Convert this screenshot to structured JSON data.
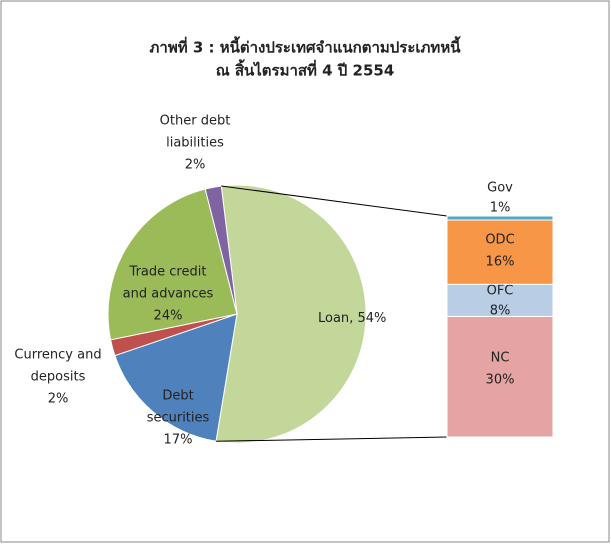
{
  "chart_data": {
    "type": "pie-of-bar",
    "title": [
      "ภาพที่ 3 : หนี้ต่างประเทศจำแนกตามประเภทหนี้",
      "ณ สิ้นไตรมาสที่  4 ปี 2554"
    ],
    "categories": [
      [
        "Loan"
      ],
      [
        "Debt",
        "securities"
      ],
      [
        "Currency and",
        "deposits"
      ],
      [
        "Trade credit",
        "and advances"
      ],
      [
        "Other debt",
        "liabilities"
      ]
    ],
    "values": [
      54,
      17,
      2,
      24,
      2
    ],
    "value_labels": [
      ", 54%",
      "17%",
      "2%",
      "24%",
      "2%"
    ],
    "colors": [
      "#c4d79b",
      "#4f81bd",
      "#c0504d",
      "#9bbb59",
      "#8064a2"
    ],
    "bar": {
      "categories": [
        [
          "NC"
        ],
        [
          "OFC"
        ],
        [
          "ODC"
        ],
        [
          "Gov"
        ]
      ],
      "values": [
        30,
        8,
        16,
        1
      ],
      "value_labels": [
        "30%",
        "8%",
        "16%",
        "1%"
      ],
      "colors": [
        "#e6a3a3",
        "#b9cde5",
        "#f79646",
        "#4bacc6"
      ]
    }
  }
}
